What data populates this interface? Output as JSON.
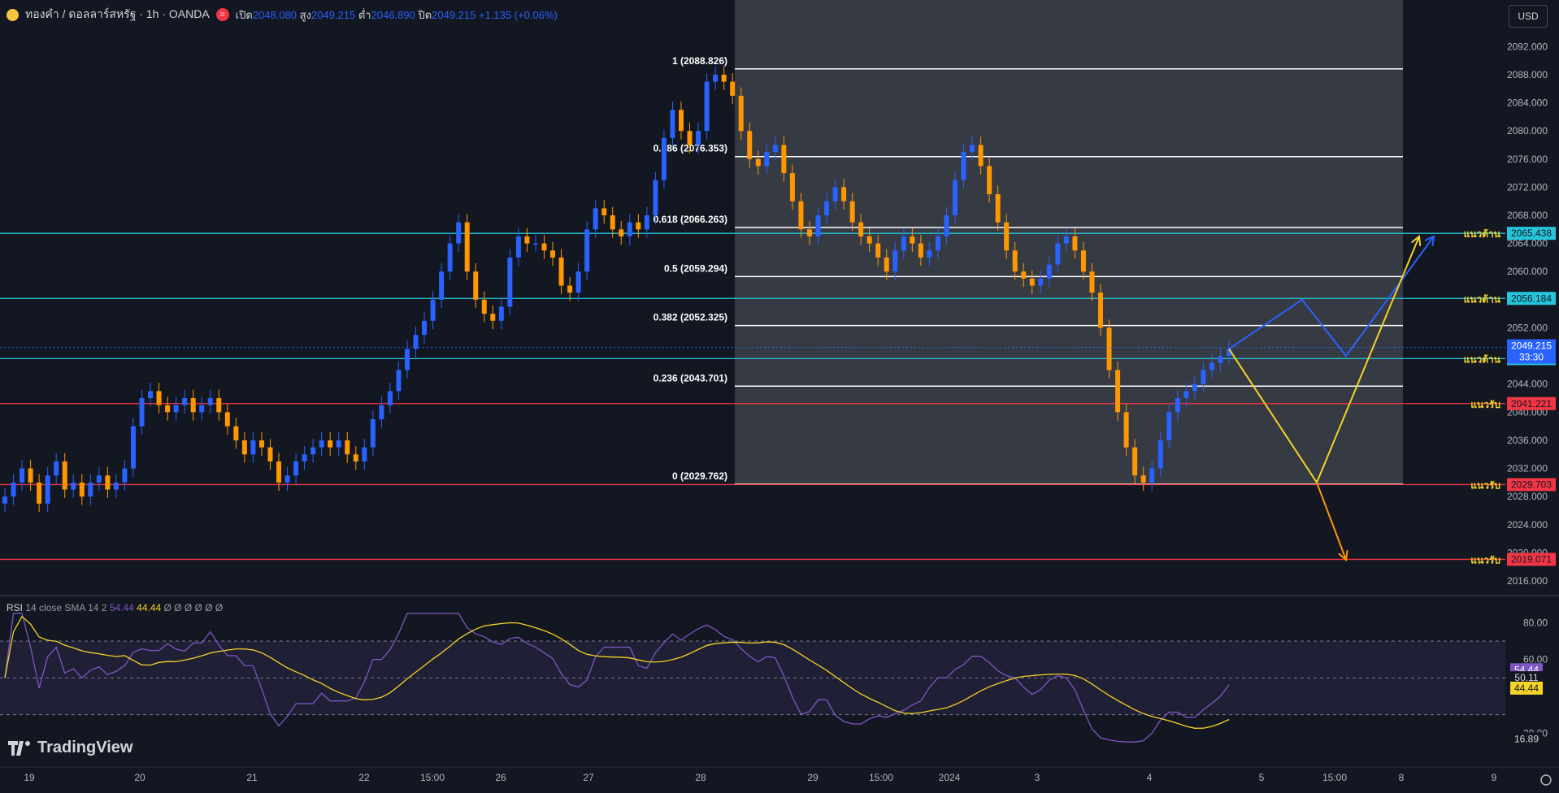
{
  "header": {
    "symbol": "ทองคำ / ดอลลาร์สหรัฐ · 1h · OANDA",
    "open_label": "เปิด",
    "open": "2048.080",
    "high_label": "สูง",
    "high": "2049.215",
    "low_label": "ต่ำ",
    "low": "2046.890",
    "close_label": "ปิด",
    "close": "2049.215",
    "change": "+1.135 (+0.06%)"
  },
  "currency": "USD",
  "brand": "TradingView",
  "chart_data": {
    "type": "candlestick",
    "y_axis": {
      "range": [
        2014.5,
        2094.0
      ],
      "ticks": [
        "2016.000",
        "2020.000",
        "2024.000",
        "2028.000",
        "2032.000",
        "2036.000",
        "2040.000",
        "2044.000",
        "2048.000",
        "2052.000",
        "2056.000",
        "2060.000",
        "2064.000",
        "2068.000",
        "2072.000",
        "2076.000",
        "2080.000",
        "2084.000",
        "2088.000",
        "2092.000"
      ]
    },
    "x_axis": {
      "ticks": [
        "19",
        "20",
        "21",
        "22",
        "15:00",
        "26",
        "27",
        "28",
        "29",
        "15:00",
        "2024",
        "3",
        "4",
        "5",
        "15:00",
        "8",
        "9"
      ]
    },
    "fibonacci": [
      {
        "label": "1 (2088.826)",
        "level": 2088.826
      },
      {
        "label": "0.786 (2076.353)",
        "level": 2076.353
      },
      {
        "label": "0.618 (2066.263)",
        "level": 2066.263
      },
      {
        "label": "0.5 (2059.294)",
        "level": 2059.294
      },
      {
        "label": "0.382 (2052.325)",
        "level": 2052.325
      },
      {
        "label": "0.236 (2043.701)",
        "level": 2043.701
      },
      {
        "label": "0 (2029.762)",
        "level": 2029.762
      }
    ],
    "levels": [
      {
        "label": "แนวต้าน",
        "value": "2065.438",
        "level": 2065.438,
        "color": "#26c6da"
      },
      {
        "label": "แนวต้าน",
        "value": "2056.184",
        "level": 2056.184,
        "color": "#26c6da"
      },
      {
        "label": "แนวต้าน",
        "value": "2047.620",
        "level": 2047.62,
        "color": "#26c6da"
      },
      {
        "label": "แนวรับ",
        "value": "2041.221",
        "level": 2041.221,
        "color": "#f23645"
      },
      {
        "label": "แนวรับ",
        "value": "2029.703",
        "level": 2029.703,
        "color": "#f23645"
      },
      {
        "label": "แนวรับ",
        "value": "2019.071",
        "level": 2019.071,
        "color": "#f23645"
      }
    ],
    "last_price": {
      "value": "2049.215",
      "countdown": "33:30",
      "level": 2049.215
    },
    "candles_close": [
      2028,
      2030,
      2032,
      2030,
      2027,
      2031,
      2033,
      2029,
      2030,
      2028,
      2030,
      2031,
      2029,
      2030,
      2032,
      2038,
      2042,
      2043,
      2041,
      2040,
      2041,
      2042,
      2040,
      2041,
      2042,
      2040,
      2038,
      2036,
      2034,
      2036,
      2035,
      2033,
      2030,
      2031,
      2033,
      2034,
      2035,
      2036,
      2035,
      2036,
      2034,
      2033,
      2035,
      2039,
      2041,
      2043,
      2046,
      2049,
      2051,
      2053,
      2056,
      2060,
      2064,
      2067,
      2060,
      2056,
      2054,
      2053,
      2055,
      2062,
      2065,
      2064,
      2064,
      2063,
      2062,
      2058,
      2057,
      2060,
      2066,
      2069,
      2068,
      2066,
      2065,
      2067,
      2066,
      2068,
      2073,
      2079,
      2083,
      2080,
      2078,
      2080,
      2087,
      2088,
      2087,
      2085,
      2080,
      2076,
      2075,
      2077,
      2078,
      2074,
      2070,
      2066,
      2065,
      2068,
      2070,
      2072,
      2070,
      2067,
      2065,
      2064,
      2062,
      2060,
      2063,
      2065,
      2064,
      2062,
      2063,
      2065,
      2068,
      2073,
      2077,
      2078,
      2075,
      2071,
      2067,
      2063,
      2060,
      2059,
      2058,
      2059,
      2061,
      2064,
      2065,
      2063,
      2060,
      2057,
      2052,
      2046,
      2040,
      2035,
      2031,
      2030,
      2032,
      2036,
      2040,
      2042,
      2043,
      2044,
      2046,
      2047,
      2048,
      2049
    ],
    "rsi": {
      "name": "RSI",
      "params": "14 close SMA 14 2",
      "value": "54.44",
      "sma": "44.44",
      "extra": "Ø Ø Ø Ø Ø Ø",
      "ticks": [
        "80.00",
        "60.00",
        "20.00"
      ],
      "upper": 70,
      "middle": 50,
      "lower": 30,
      "labels": {
        "rsi": "54.44",
        "mid": "50.11",
        "sma": "44.44",
        "low": "16.89"
      }
    },
    "projection": {
      "blue": [
        [
          2049,
          0
        ],
        [
          2056,
          5
        ],
        [
          2048,
          8
        ],
        [
          2065,
          14
        ]
      ],
      "yellow": [
        [
          2049,
          0
        ],
        [
          2030,
          6
        ],
        [
          2065,
          13
        ]
      ],
      "orange": [
        [
          2030,
          6
        ],
        [
          2019,
          8
        ]
      ]
    }
  }
}
